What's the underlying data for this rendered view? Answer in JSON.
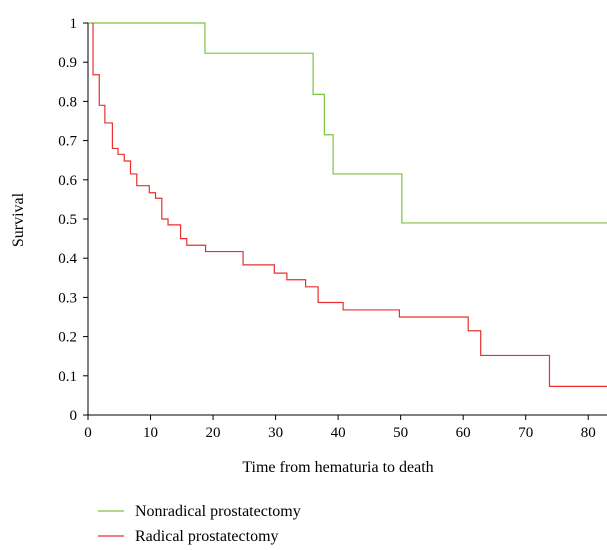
{
  "chart_data": {
    "type": "line",
    "step": true,
    "title": "",
    "xlabel": "Time from hematuria to death",
    "ylabel": "Survival",
    "xlim": [
      0,
      83
    ],
    "ylim": [
      0,
      1
    ],
    "x_ticks": [
      "0",
      "10",
      "20",
      "30",
      "40",
      "50",
      "60",
      "70",
      "80"
    ],
    "y_ticks": [
      "0",
      "0.1",
      "0.2",
      "0.3",
      "0.4",
      "0.5",
      "0.6",
      "0.7",
      "0.8",
      "0.9",
      "1"
    ],
    "grid": false,
    "legend_position": "bottom-left",
    "series": [
      {
        "name": "Nonradical prostatectomy",
        "color": "#7fc241",
        "points": [
          [
            0,
            1.0
          ],
          [
            18.7,
            1.0
          ],
          [
            18.7,
            0.923
          ],
          [
            36.0,
            0.923
          ],
          [
            36.0,
            0.818
          ],
          [
            37.8,
            0.818
          ],
          [
            37.8,
            0.715
          ],
          [
            39.2,
            0.715
          ],
          [
            39.2,
            0.615
          ],
          [
            50.2,
            0.615
          ],
          [
            50.2,
            0.49
          ],
          [
            83,
            0.49
          ]
        ]
      },
      {
        "name": "Radical prostatectomy",
        "color": "#e8312f",
        "points": [
          [
            0.8,
            1.0
          ],
          [
            0.8,
            0.868
          ],
          [
            1.8,
            0.868
          ],
          [
            1.8,
            0.79
          ],
          [
            2.7,
            0.79
          ],
          [
            2.7,
            0.745
          ],
          [
            3.9,
            0.745
          ],
          [
            3.9,
            0.68
          ],
          [
            4.8,
            0.68
          ],
          [
            4.8,
            0.665
          ],
          [
            5.8,
            0.665
          ],
          [
            5.8,
            0.648
          ],
          [
            6.8,
            0.648
          ],
          [
            6.8,
            0.615
          ],
          [
            7.8,
            0.615
          ],
          [
            7.8,
            0.585
          ],
          [
            9.8,
            0.585
          ],
          [
            9.8,
            0.567
          ],
          [
            10.8,
            0.567
          ],
          [
            10.8,
            0.553
          ],
          [
            11.8,
            0.553
          ],
          [
            11.8,
            0.5
          ],
          [
            12.8,
            0.5
          ],
          [
            12.8,
            0.485
          ],
          [
            14.8,
            0.485
          ],
          [
            14.8,
            0.45
          ],
          [
            15.8,
            0.45
          ],
          [
            15.8,
            0.433
          ],
          [
            18.8,
            0.433
          ],
          [
            18.8,
            0.417
          ],
          [
            24.8,
            0.417
          ],
          [
            24.8,
            0.383
          ],
          [
            29.8,
            0.383
          ],
          [
            29.8,
            0.362
          ],
          [
            31.8,
            0.362
          ],
          [
            31.8,
            0.345
          ],
          [
            34.8,
            0.345
          ],
          [
            34.8,
            0.327
          ],
          [
            36.8,
            0.327
          ],
          [
            36.8,
            0.287
          ],
          [
            40.8,
            0.287
          ],
          [
            40.8,
            0.268
          ],
          [
            49.8,
            0.268
          ],
          [
            49.8,
            0.25
          ],
          [
            60.8,
            0.25
          ],
          [
            60.8,
            0.215
          ],
          [
            62.8,
            0.215
          ],
          [
            62.8,
            0.152
          ],
          [
            73.8,
            0.152
          ],
          [
            73.8,
            0.073
          ],
          [
            83,
            0.073
          ]
        ]
      }
    ]
  }
}
